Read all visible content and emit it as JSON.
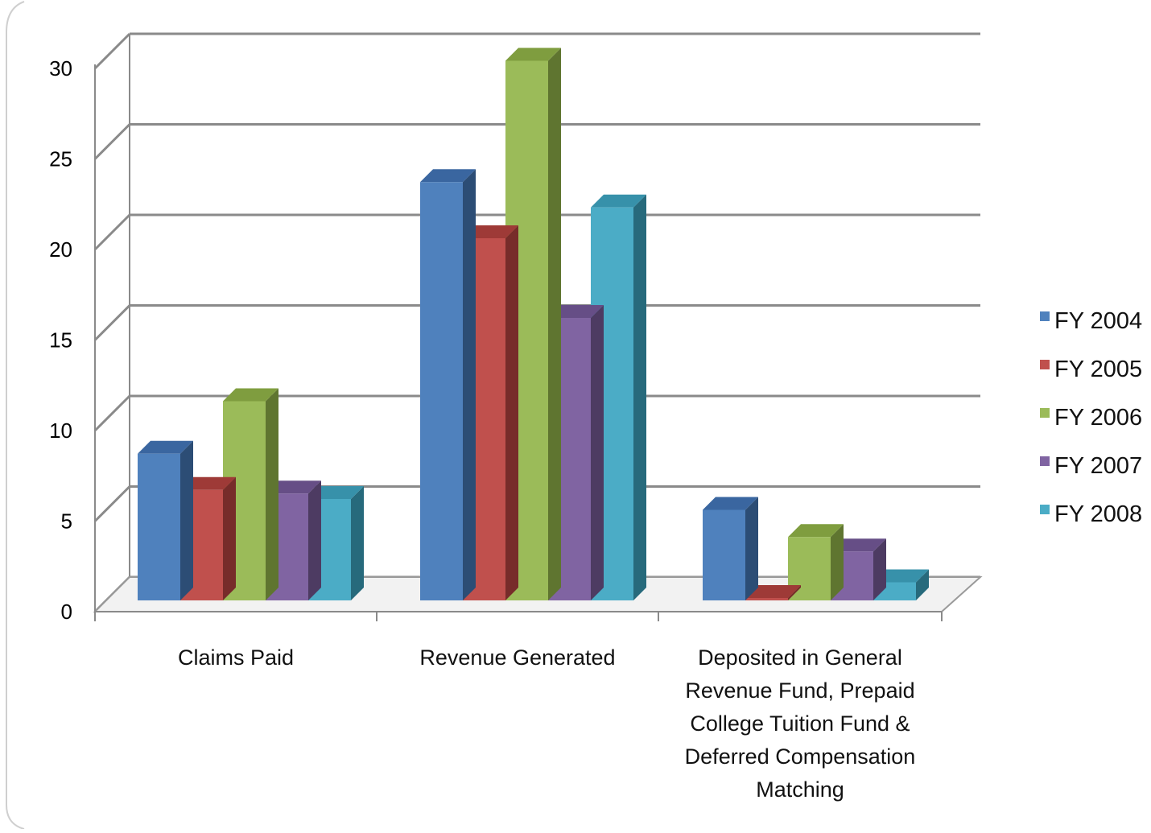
{
  "chart_data": {
    "type": "bar",
    "three_d": true,
    "categories": [
      [
        "Claims Paid"
      ],
      [
        "Revenue Generated"
      ],
      [
        "Deposited in General",
        "Revenue Fund, Prepaid",
        "College Tuition Fund &",
        "Deferred Compensation",
        "Matching"
      ]
    ],
    "series": [
      {
        "name": "FY 2004",
        "color": "#4F81BD",
        "side": "#2C4D75",
        "top": "#3A66A0",
        "values": [
          8.1,
          23.1,
          5.0
        ]
      },
      {
        "name": "FY 2005",
        "color": "#C0504D",
        "side": "#772C2A",
        "top": "#9E3A37",
        "values": [
          6.1,
          20.0,
          0.1
        ]
      },
      {
        "name": "FY 2006",
        "color": "#9BBB59",
        "side": "#5F7530",
        "top": "#7F9D3F",
        "values": [
          11.0,
          29.8,
          3.5
        ]
      },
      {
        "name": "FY 2007",
        "color": "#8064A2",
        "side": "#4D3B62",
        "top": "#664E86",
        "values": [
          5.9,
          15.6,
          2.7
        ]
      },
      {
        "name": "FY 2008",
        "color": "#4BACC6",
        "side": "#276A7C",
        "top": "#3791AA",
        "values": [
          5.6,
          21.7,
          1.0
        ]
      }
    ],
    "yticks": [
      0,
      5,
      10,
      15,
      20,
      25,
      30
    ],
    "ylim": [
      0,
      30
    ],
    "grid": true,
    "legend": "right",
    "title": "",
    "xlabel": "",
    "ylabel": ""
  }
}
